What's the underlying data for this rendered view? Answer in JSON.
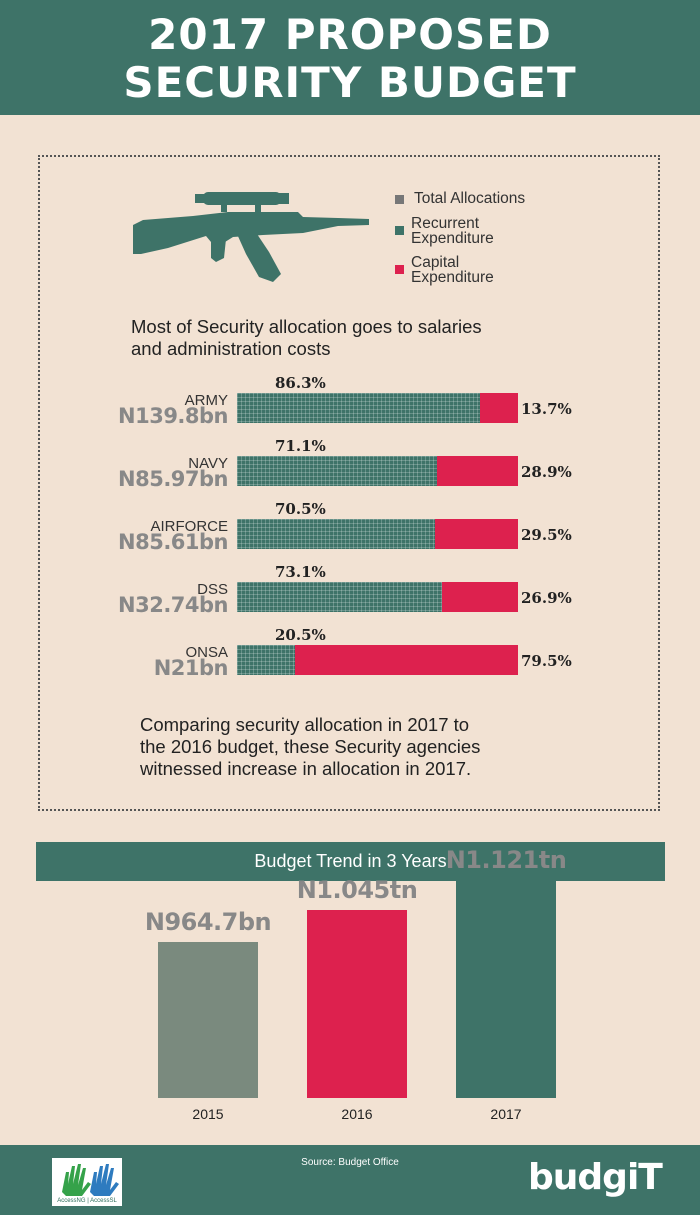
{
  "title_line1": "2017 PROPOSED",
  "title_line2": "SECURITY BUDGET",
  "legend": {
    "total": "Total Allocations",
    "recurrent_1": "Recurrent",
    "recurrent_2": "Expenditure",
    "capital_1": "Capital",
    "capital_2": "Expenditure"
  },
  "colors": {
    "teal": "#3e7368",
    "red": "#dd214e",
    "grey": "#7a8a7e",
    "beige": "#f2e2d3"
  },
  "intro_line1": "Most of Security allocation goes to salaries",
  "intro_line2": "and administration costs",
  "compare_line1": "Comparing security allocation in 2017 to",
  "compare_line2": "the 2016 budget, these Security agencies",
  "compare_line3": "witnessed increase in allocation in 2017.",
  "chart_data": [
    {
      "type": "bar",
      "categories": [
        "ARMY",
        "NAVY",
        "AIRFORCE",
        "DSS",
        "ONSA"
      ],
      "amounts": [
        "N139.8bn",
        "N85.97bn",
        "N85.61bn",
        "N32.74bn",
        "N21bn"
      ],
      "series": [
        {
          "name": "Recurrent Expenditure",
          "values": [
            86.3,
            71.1,
            70.5,
            73.1,
            20.5
          ],
          "labels": [
            "86.3%",
            "71.1%",
            "70.5%",
            "73.1%",
            "20.5%"
          ]
        },
        {
          "name": "Capital Expenditure",
          "values": [
            13.7,
            28.9,
            29.5,
            26.9,
            79.5
          ],
          "labels": [
            "13.7%",
            "28.9%",
            "29.5%",
            "26.9%",
            "79.5%"
          ]
        }
      ],
      "stacked": true,
      "orientation": "horizontal",
      "xlim": [
        0,
        100
      ]
    },
    {
      "type": "bar",
      "title": "Budget Trend in 3 Years",
      "categories": [
        "2015",
        "2016",
        "2017"
      ],
      "values": [
        964.7,
        1045,
        1121
      ],
      "value_labels": [
        "N964.7bn",
        "N1.045tn",
        "N1.121tn"
      ],
      "unit": "N billion",
      "colors": [
        "#7a8a7e",
        "#dd214e",
        "#3e7368"
      ]
    }
  ],
  "footer": {
    "source": "Source: Budget Office",
    "logo_left": "AccessNG | AccessSL",
    "logo_right": "budgiT"
  }
}
